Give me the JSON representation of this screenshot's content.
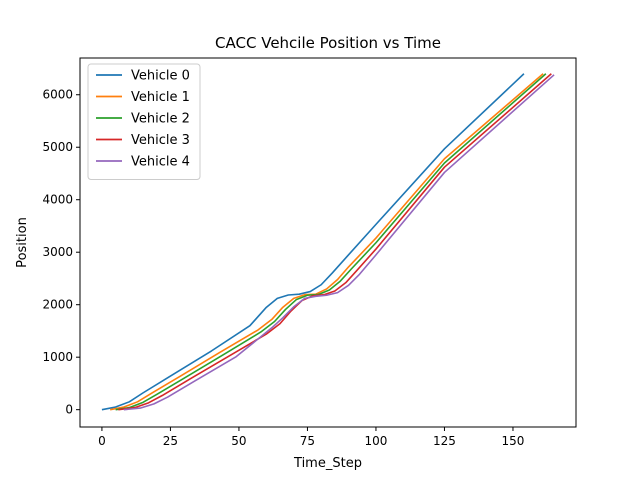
{
  "chart_data": {
    "type": "line",
    "title": "CACC Vehcile Position vs Time",
    "xlabel": "Time_Step",
    "ylabel": "Position",
    "xlim": [
      -8,
      173
    ],
    "ylim": [
      -330,
      6700
    ],
    "xticks": [
      0,
      25,
      50,
      75,
      100,
      125,
      150
    ],
    "yticks": [
      0,
      1000,
      2000,
      3000,
      4000,
      5000,
      6000
    ],
    "grid": false,
    "legend_position": "upper-left",
    "series": [
      {
        "name": "Vehicle 0",
        "color": "#1f77b4",
        "points": [
          [
            0,
            0
          ],
          [
            5,
            50
          ],
          [
            10,
            150
          ],
          [
            15,
            320
          ],
          [
            25,
            640
          ],
          [
            40,
            1120
          ],
          [
            54,
            1600
          ],
          [
            60,
            1950
          ],
          [
            64,
            2120
          ],
          [
            68,
            2185
          ],
          [
            72,
            2200
          ],
          [
            76,
            2250
          ],
          [
            80,
            2380
          ],
          [
            84,
            2600
          ],
          [
            90,
            2950
          ],
          [
            100,
            3530
          ],
          [
            125,
            4970
          ],
          [
            154,
            6400
          ]
        ]
      },
      {
        "name": "Vehicle 1",
        "color": "#ff7f0e",
        "points": [
          [
            3,
            0
          ],
          [
            8,
            50
          ],
          [
            13,
            150
          ],
          [
            18,
            310
          ],
          [
            28,
            620
          ],
          [
            43,
            1090
          ],
          [
            57,
            1520
          ],
          [
            62,
            1720
          ],
          [
            66,
            1950
          ],
          [
            70,
            2120
          ],
          [
            74,
            2190
          ],
          [
            78,
            2200
          ],
          [
            82,
            2300
          ],
          [
            86,
            2480
          ],
          [
            90,
            2720
          ],
          [
            100,
            3270
          ],
          [
            125,
            4780
          ],
          [
            161,
            6400
          ]
        ]
      },
      {
        "name": "Vehicle 2",
        "color": "#2ca02c",
        "points": [
          [
            5,
            0
          ],
          [
            10,
            40
          ],
          [
            15,
            140
          ],
          [
            20,
            290
          ],
          [
            30,
            600
          ],
          [
            45,
            1070
          ],
          [
            58,
            1480
          ],
          [
            63,
            1680
          ],
          [
            67,
            1910
          ],
          [
            71,
            2100
          ],
          [
            75,
            2180
          ],
          [
            79,
            2195
          ],
          [
            83,
            2280
          ],
          [
            87,
            2450
          ],
          [
            91,
            2680
          ],
          [
            100,
            3180
          ],
          [
            125,
            4700
          ],
          [
            162,
            6400
          ]
        ]
      },
      {
        "name": "Vehicle 3",
        "color": "#d62728",
        "points": [
          [
            6,
            0
          ],
          [
            12,
            40
          ],
          [
            17,
            130
          ],
          [
            22,
            270
          ],
          [
            32,
            580
          ],
          [
            47,
            1040
          ],
          [
            60,
            1440
          ],
          [
            65,
            1640
          ],
          [
            69,
            1880
          ],
          [
            73,
            2080
          ],
          [
            77,
            2170
          ],
          [
            81,
            2190
          ],
          [
            85,
            2260
          ],
          [
            89,
            2420
          ],
          [
            93,
            2650
          ],
          [
            100,
            3060
          ],
          [
            125,
            4620
          ],
          [
            164,
            6400
          ]
        ]
      },
      {
        "name": "Vehicle 4",
        "color": "#9467bd",
        "points": [
          [
            8,
            0
          ],
          [
            14,
            30
          ],
          [
            19,
            110
          ],
          [
            24,
            240
          ],
          [
            34,
            550
          ],
          [
            49,
            1010
          ],
          [
            62,
            1560
          ],
          [
            66,
            1750
          ],
          [
            70,
            1960
          ],
          [
            74,
            2120
          ],
          [
            78,
            2160
          ],
          [
            82,
            2180
          ],
          [
            86,
            2230
          ],
          [
            90,
            2370
          ],
          [
            94,
            2580
          ],
          [
            100,
            2950
          ],
          [
            125,
            4520
          ],
          [
            165,
            6380
          ]
        ]
      }
    ]
  }
}
